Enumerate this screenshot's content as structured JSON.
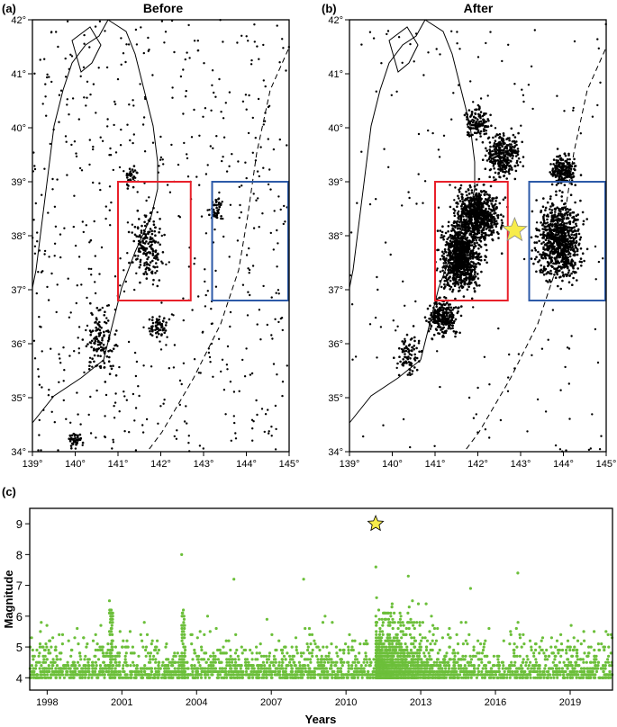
{
  "panels": {
    "a": {
      "label": "(a)",
      "title": "Before"
    },
    "b": {
      "label": "(b)",
      "title": "After"
    },
    "c": {
      "label": "(c)"
    }
  },
  "map": {
    "lon_range": [
      139,
      145
    ],
    "lat_range": [
      34,
      42
    ],
    "lon_ticks": [
      139,
      140,
      141,
      142,
      143,
      144,
      145
    ],
    "lat_ticks": [
      34,
      35,
      36,
      37,
      38,
      39,
      40,
      41,
      42
    ],
    "lon_tick_labels": [
      "139°",
      "140°",
      "141°",
      "142°",
      "143°",
      "144°",
      "145°"
    ],
    "lat_tick_labels": [
      "34°",
      "35°",
      "36°",
      "37°",
      "38°",
      "39°",
      "40°",
      "41°",
      "42°"
    ],
    "boxes": [
      {
        "name": "red-box",
        "color": "#e8202a",
        "lon": [
          141.0,
          142.7
        ],
        "lat": [
          36.8,
          39.0
        ]
      },
      {
        "name": "blue-box",
        "color": "#2c5aa8",
        "lon": [
          143.2,
          145.0
        ],
        "lat": [
          36.8,
          39.0
        ]
      }
    ],
    "mainshock": {
      "lon": 142.86,
      "lat": 38.1,
      "color": "#f7ec4a"
    },
    "dot_color": "#000000"
  },
  "chart_data": {
    "type": "scatter",
    "xlabel": "Years",
    "ylabel": "Magnitude",
    "xlim": [
      1997.3,
      2020.7
    ],
    "ylim": [
      3.6,
      9.5
    ],
    "x_ticks": [
      1998,
      2001,
      2004,
      2007,
      2010,
      2013,
      2016,
      2019
    ],
    "x_tick_labels": [
      "1998",
      "2001",
      "2004",
      "2007",
      "2010",
      "2013",
      "2016",
      "2019"
    ],
    "y_ticks": [
      4,
      5,
      6,
      7,
      8,
      9
    ],
    "y_tick_labels": [
      "4",
      "5",
      "6",
      "7",
      "8",
      "9"
    ],
    "point_color": "#6cbf3a",
    "mainshock": {
      "x": 2011.19,
      "y": 9.0,
      "color": "#f7ec4a"
    },
    "notable_events": [
      {
        "x": 2003.4,
        "y": 8.0
      },
      {
        "x": 2011.2,
        "y": 7.6
      },
      {
        "x": 2016.9,
        "y": 7.4
      },
      {
        "x": 2000.5,
        "y": 6.5
      },
      {
        "x": 2008.3,
        "y": 7.2
      },
      {
        "x": 2015.0,
        "y": 6.9
      },
      {
        "x": 2005.5,
        "y": 7.2
      },
      {
        "x": 2012.5,
        "y": 7.3
      }
    ]
  }
}
